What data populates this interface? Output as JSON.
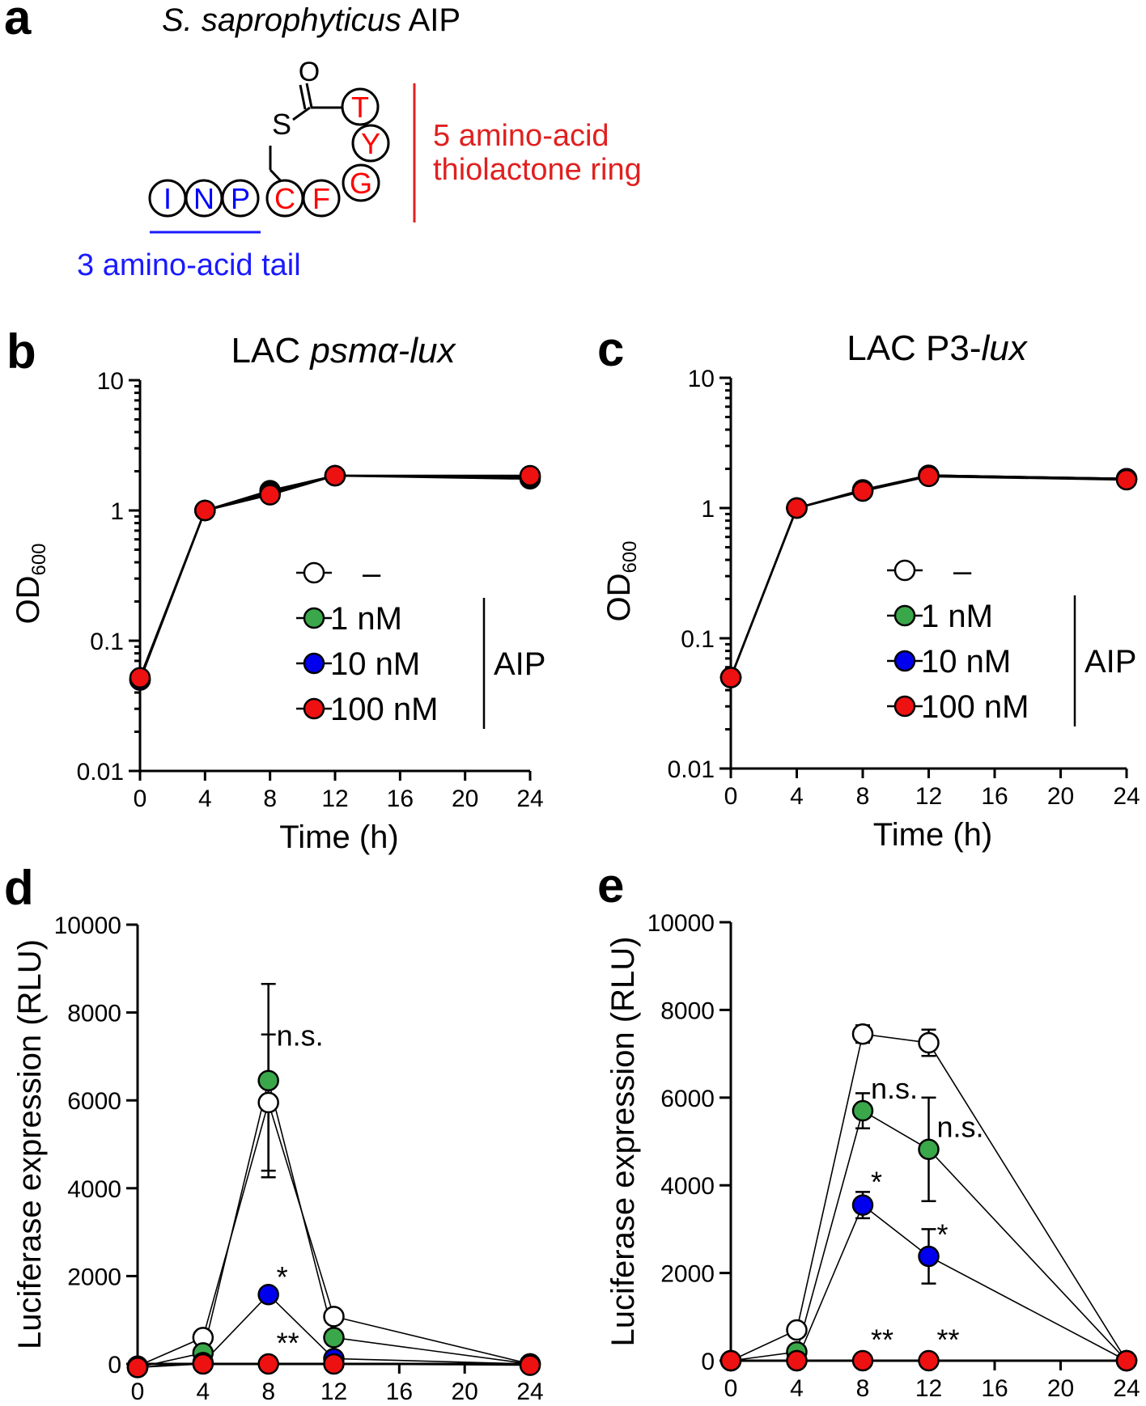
{
  "panel_a": {
    "label": "a",
    "title_species": "S. saprophyticus",
    "title_suffix": "AIP",
    "tail_residues": [
      "I",
      "N",
      "P"
    ],
    "ring_residues": [
      "C",
      "F",
      "G",
      "Y",
      "T"
    ],
    "carbonyl_o": "O",
    "sulfur": "S",
    "ring_label_line1": "5 amino-acid",
    "ring_label_line2": "thiolactone ring",
    "tail_label": "3 amino-acid tail",
    "colors": {
      "tail": "#0000ff",
      "ring": "#ff0000"
    }
  },
  "series_styles": [
    {
      "key": "none",
      "legend": "-",
      "fill": "#ffffff"
    },
    {
      "key": "1nM",
      "legend": "1 nM",
      "fill": "#3aa84a"
    },
    {
      "key": "10nM",
      "legend": "10 nM",
      "fill": "#0000ee"
    },
    {
      "key": "100nM",
      "legend": "100 nM",
      "fill": "#ee1111"
    }
  ],
  "legend_group_label": "AIP",
  "chart_data": [
    {
      "id": "b",
      "panel_label": "b",
      "type": "line",
      "title_plain": "LAC ",
      "title_italic": "psmα-lux",
      "xlabel": "Time (h)",
      "ylabel": "OD",
      "ylabel_sub": "600",
      "yscale": "log",
      "ylim": [
        0.01,
        10
      ],
      "xlim": [
        0,
        24
      ],
      "xticks": [
        0,
        4,
        8,
        12,
        16,
        20,
        24
      ],
      "yticks": [
        0.01,
        0.1,
        1,
        10
      ],
      "ytick_labels": [
        "0.01",
        "0.1",
        "1",
        "10"
      ],
      "x": [
        0,
        4,
        8,
        12,
        24
      ],
      "series": [
        {
          "name": "-",
          "values": [
            0.05,
            1.0,
            1.42,
            1.85,
            1.75
          ]
        },
        {
          "name": "1 nM",
          "values": [
            0.05,
            1.0,
            1.38,
            1.85,
            1.8
          ]
        },
        {
          "name": "10 nM",
          "values": [
            0.05,
            1.0,
            1.35,
            1.85,
            1.82
          ]
        },
        {
          "name": "100 nM",
          "values": [
            0.052,
            1.0,
            1.32,
            1.85,
            1.85
          ]
        }
      ]
    },
    {
      "id": "c",
      "panel_label": "c",
      "type": "line",
      "title_plain": "LAC P3-",
      "title_italic": "lux",
      "xlabel": "Time (h)",
      "ylabel": "OD",
      "ylabel_sub": "600",
      "yscale": "log",
      "ylim": [
        0.01,
        10
      ],
      "xlim": [
        0,
        24
      ],
      "xticks": [
        0,
        4,
        8,
        12,
        16,
        20,
        24
      ],
      "yticks": [
        0.01,
        0.1,
        1,
        10
      ],
      "ytick_labels": [
        "0.01",
        "0.1",
        "1",
        "10"
      ],
      "x": [
        0,
        4,
        8,
        12,
        24
      ],
      "series": [
        {
          "name": "-",
          "values": [
            0.05,
            1.0,
            1.38,
            1.78,
            1.68
          ]
        },
        {
          "name": "1 nM",
          "values": [
            0.05,
            1.0,
            1.36,
            1.78,
            1.68
          ]
        },
        {
          "name": "10 nM",
          "values": [
            0.05,
            1.0,
            1.35,
            1.78,
            1.68
          ]
        },
        {
          "name": "100 nM",
          "values": [
            0.05,
            1.0,
            1.35,
            1.75,
            1.65
          ]
        }
      ]
    },
    {
      "id": "d",
      "panel_label": "d",
      "type": "line",
      "xlabel": "Time (h)",
      "ylabel": "Luciferase expression (RLU)",
      "yscale": "linear",
      "ylim": [
        0,
        10000
      ],
      "xlim": [
        0,
        24
      ],
      "xticks": [
        0,
        4,
        8,
        12,
        16,
        20,
        24
      ],
      "yticks": [
        0,
        2000,
        4000,
        6000,
        8000,
        10000
      ],
      "ytick_labels": [
        "0",
        "2000",
        "4000",
        "6000",
        "8000",
        "10000"
      ],
      "x": [
        0,
        4,
        8,
        12,
        24
      ],
      "series": [
        {
          "name": "-",
          "values": [
            -50,
            600,
            5950,
            1080,
            0
          ],
          "errors": [
            0,
            0,
            1550,
            0,
            0
          ]
        },
        {
          "name": "1 nM",
          "values": [
            -80,
            250,
            6450,
            600,
            0
          ],
          "errors": [
            0,
            0,
            2200,
            0,
            0
          ]
        },
        {
          "name": "10 nM",
          "values": [
            -80,
            30,
            1580,
            120,
            0
          ],
          "errors": [
            0,
            0,
            0,
            0,
            0
          ]
        },
        {
          "name": "100 nM",
          "values": [
            -80,
            0,
            0,
            0,
            -30
          ],
          "errors": [
            0,
            0,
            0,
            0,
            0
          ]
        }
      ],
      "annotations": [
        {
          "text": "n.s.",
          "x": 8,
          "y": 7250
        },
        {
          "text": "*",
          "x": 8,
          "y": 1750
        },
        {
          "text": "**",
          "x": 8,
          "y": 250
        }
      ]
    },
    {
      "id": "e",
      "panel_label": "e",
      "type": "line",
      "xlabel": "Time (h)",
      "ylabel": "Luciferase expression (RLU)",
      "yscale": "linear",
      "ylim": [
        0,
        10000
      ],
      "xlim": [
        0,
        24
      ],
      "xticks": [
        0,
        4,
        8,
        12,
        16,
        20,
        24
      ],
      "yticks": [
        0,
        2000,
        4000,
        6000,
        8000,
        10000
      ],
      "ytick_labels": [
        "0",
        "2000",
        "4000",
        "6000",
        "8000",
        "10000"
      ],
      "x": [
        0,
        4,
        8,
        12,
        24
      ],
      "series": [
        {
          "name": "-",
          "values": [
            0,
            700,
            7450,
            7250,
            0
          ],
          "errors": [
            0,
            0,
            200,
            300,
            0
          ]
        },
        {
          "name": "1 nM",
          "values": [
            0,
            200,
            5700,
            4820,
            0
          ],
          "errors": [
            0,
            0,
            400,
            1180,
            0
          ]
        },
        {
          "name": "10 nM",
          "values": [
            0,
            0,
            3550,
            2380,
            0
          ],
          "errors": [
            0,
            0,
            300,
            620,
            0
          ]
        },
        {
          "name": "100 nM",
          "values": [
            0,
            0,
            0,
            0,
            0
          ],
          "errors": [
            0,
            0,
            0,
            0,
            0
          ]
        }
      ],
      "annotations": [
        {
          "text": "n.s.",
          "x": 8,
          "y": 5980
        },
        {
          "text": "n.s.",
          "x": 12,
          "y": 5100
        },
        {
          "text": "*",
          "x": 8,
          "y": 3850
        },
        {
          "text": "*",
          "x": 12,
          "y": 2650
        },
        {
          "text": "**",
          "x": 8,
          "y": 250
        },
        {
          "text": "**",
          "x": 12,
          "y": 250
        }
      ]
    }
  ]
}
